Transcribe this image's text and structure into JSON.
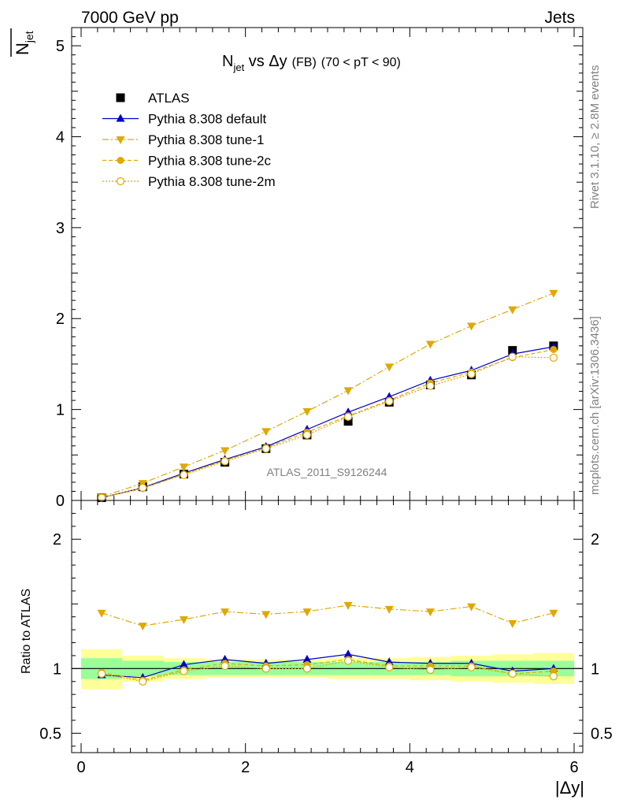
{
  "header": {
    "left": "7000 GeV pp",
    "right": "Jets",
    "ylabel_main": "N",
    "ylabel_sub": "jet",
    "ylabel_ratio": "Ratio to ATLAS",
    "xlabel": "|Δy|",
    "watermark": "ATLAS_2011_S9126244",
    "side_top": "Rivet 3.1.10, ≥ 2.8M events",
    "side_bottom": "mcplots.cern.ch [arXiv:1306.3436]"
  },
  "title": {
    "n": "N",
    "sub": "jet",
    "rest": " vs Δy",
    "fb": "(FB)",
    "range": "(70 < pT <  90)"
  },
  "legend": [
    {
      "label": "ATLAS"
    },
    {
      "label": "Pythia 8.308 default"
    },
    {
      "label": "Pythia 8.308 tune-1"
    },
    {
      "label": "Pythia 8.308 tune-2c"
    },
    {
      "label": "Pythia 8.308 tune-2m"
    }
  ],
  "colors": {
    "data": "#000000",
    "default": "#0000cc",
    "tune": "#e0a800",
    "green": "#99ff99",
    "yellow": "#ffff99"
  },
  "chart_data": [
    {
      "type": "scatter",
      "x": [
        0.25,
        0.75,
        1.25,
        1.75,
        2.25,
        2.75,
        3.25,
        3.75,
        4.25,
        4.75,
        5.25,
        5.75
      ],
      "xlim": [
        0,
        6
      ],
      "ylim": [
        0,
        5.2
      ],
      "yticks": [
        0,
        1,
        2,
        3,
        4,
        5
      ],
      "xticks": [
        0,
        2,
        4,
        6
      ],
      "series": [
        {
          "name": "ATLAS",
          "values": [
            0.03,
            0.15,
            0.29,
            0.42,
            0.57,
            0.72,
            0.87,
            1.08,
            1.27,
            1.38,
            1.65,
            1.7
          ]
        },
        {
          "name": "Pythia 8.308 default",
          "values": [
            0.03,
            0.14,
            0.3,
            0.45,
            0.59,
            0.78,
            0.97,
            1.14,
            1.32,
            1.43,
            1.61,
            1.69
          ]
        },
        {
          "name": "Pythia 8.308 tune-1",
          "values": [
            0.04,
            0.19,
            0.37,
            0.55,
            0.76,
            0.98,
            1.21,
            1.47,
            1.72,
            1.92,
            2.1,
            2.28
          ]
        },
        {
          "name": "Pythia 8.308 tune-2c",
          "values": [
            0.03,
            0.13,
            0.29,
            0.44,
            0.58,
            0.75,
            0.93,
            1.1,
            1.29,
            1.41,
            1.57,
            1.66
          ]
        },
        {
          "name": "Pythia 8.308 tune-2m",
          "values": [
            0.03,
            0.14,
            0.28,
            0.43,
            0.57,
            0.72,
            0.92,
            1.09,
            1.26,
            1.39,
            1.58,
            1.57
          ]
        }
      ]
    },
    {
      "type": "scatter",
      "x": [
        0.25,
        0.75,
        1.25,
        1.75,
        2.25,
        2.75,
        3.25,
        3.75,
        4.25,
        4.75,
        5.25,
        5.75
      ],
      "xlim": [
        0,
        6
      ],
      "ylim": [
        0.35,
        2.3
      ],
      "yticks": [
        0.5,
        1,
        2
      ],
      "xticks": [
        0,
        2,
        4,
        6
      ],
      "band_edges": [
        0,
        0.5,
        1,
        1.5,
        2,
        2.5,
        3,
        3.5,
        4,
        4.5,
        5,
        5.5,
        6
      ],
      "band_green": [
        [
          0.92,
          1.08
        ],
        [
          0.94,
          1.06
        ],
        [
          0.95,
          1.05
        ],
        [
          0.95,
          1.05
        ],
        [
          0.95,
          1.05
        ],
        [
          0.95,
          1.05
        ],
        [
          0.95,
          1.05
        ],
        [
          0.95,
          1.05
        ],
        [
          0.95,
          1.05
        ],
        [
          0.94,
          1.06
        ],
        [
          0.94,
          1.06
        ],
        [
          0.94,
          1.06
        ]
      ],
      "band_yellow": [
        [
          0.84,
          1.15
        ],
        [
          0.9,
          1.1
        ],
        [
          0.92,
          1.08
        ],
        [
          0.93,
          1.07
        ],
        [
          0.93,
          1.07
        ],
        [
          0.93,
          1.07
        ],
        [
          0.92,
          1.08
        ],
        [
          0.92,
          1.08
        ],
        [
          0.91,
          1.09
        ],
        [
          0.9,
          1.1
        ],
        [
          0.89,
          1.11
        ],
        [
          0.88,
          1.12
        ]
      ],
      "series": [
        {
          "name": "Pythia 8.308 default",
          "values": [
            0.95,
            0.93,
            1.03,
            1.07,
            1.04,
            1.07,
            1.11,
            1.05,
            1.04,
            1.04,
            0.98,
            1.0
          ]
        },
        {
          "name": "Pythia 8.308 tune-1",
          "values": [
            1.43,
            1.33,
            1.38,
            1.44,
            1.42,
            1.44,
            1.49,
            1.46,
            1.44,
            1.48,
            1.35,
            1.43
          ]
        },
        {
          "name": "Pythia 8.308 tune-2c",
          "values": [
            0.97,
            0.91,
            0.99,
            1.04,
            1.02,
            1.03,
            1.07,
            1.02,
            1.02,
            1.02,
            0.96,
            0.98
          ]
        },
        {
          "name": "Pythia 8.308 tune-2m",
          "values": [
            0.96,
            0.9,
            0.98,
            1.02,
            1.0,
            1.0,
            1.06,
            1.01,
            0.99,
            1.01,
            0.96,
            0.94
          ]
        }
      ]
    }
  ]
}
